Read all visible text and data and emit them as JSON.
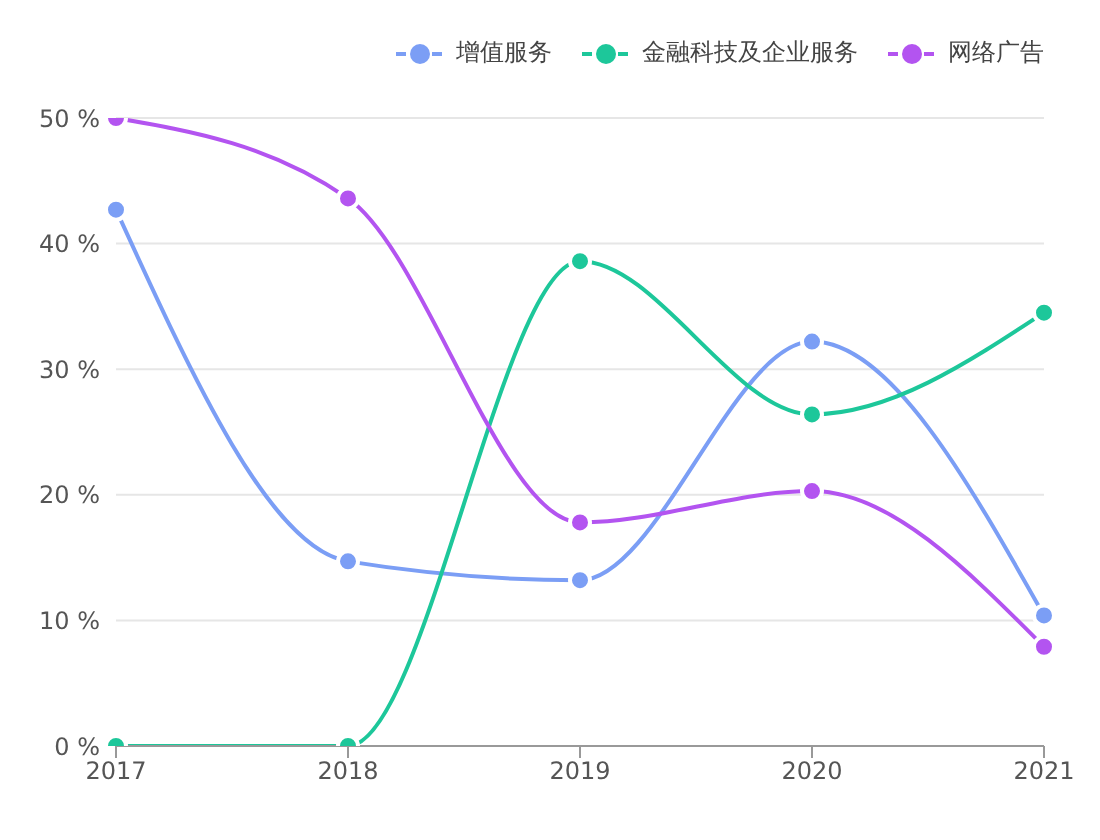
{
  "chart_data": {
    "type": "line",
    "categories": [
      "2017",
      "2018",
      "2019",
      "2020",
      "2021"
    ],
    "series": [
      {
        "name": "增值服务",
        "color": "#7b9ef5",
        "values": [
          42.7,
          14.7,
          13.2,
          32.2,
          10.4
        ]
      },
      {
        "name": "金融科技及企业服务",
        "color": "#1dc79a",
        "values": [
          0,
          0,
          38.6,
          26.4,
          34.5
        ]
      },
      {
        "name": "网络广告",
        "color": "#b354f0",
        "values": [
          50,
          43.6,
          17.8,
          20.3,
          7.9
        ]
      }
    ],
    "ylim": [
      0,
      50
    ],
    "yticks": [
      {
        "value": 0,
        "label": "0 %"
      },
      {
        "value": 10,
        "label": "10 %"
      },
      {
        "value": 20,
        "label": "20 %"
      },
      {
        "value": 30,
        "label": "30 %"
      },
      {
        "value": 40,
        "label": "40 %"
      },
      {
        "value": 50,
        "label": "50 %"
      }
    ],
    "grid": "y",
    "legend": "top right",
    "marker": "circle",
    "line_style": "solid"
  }
}
